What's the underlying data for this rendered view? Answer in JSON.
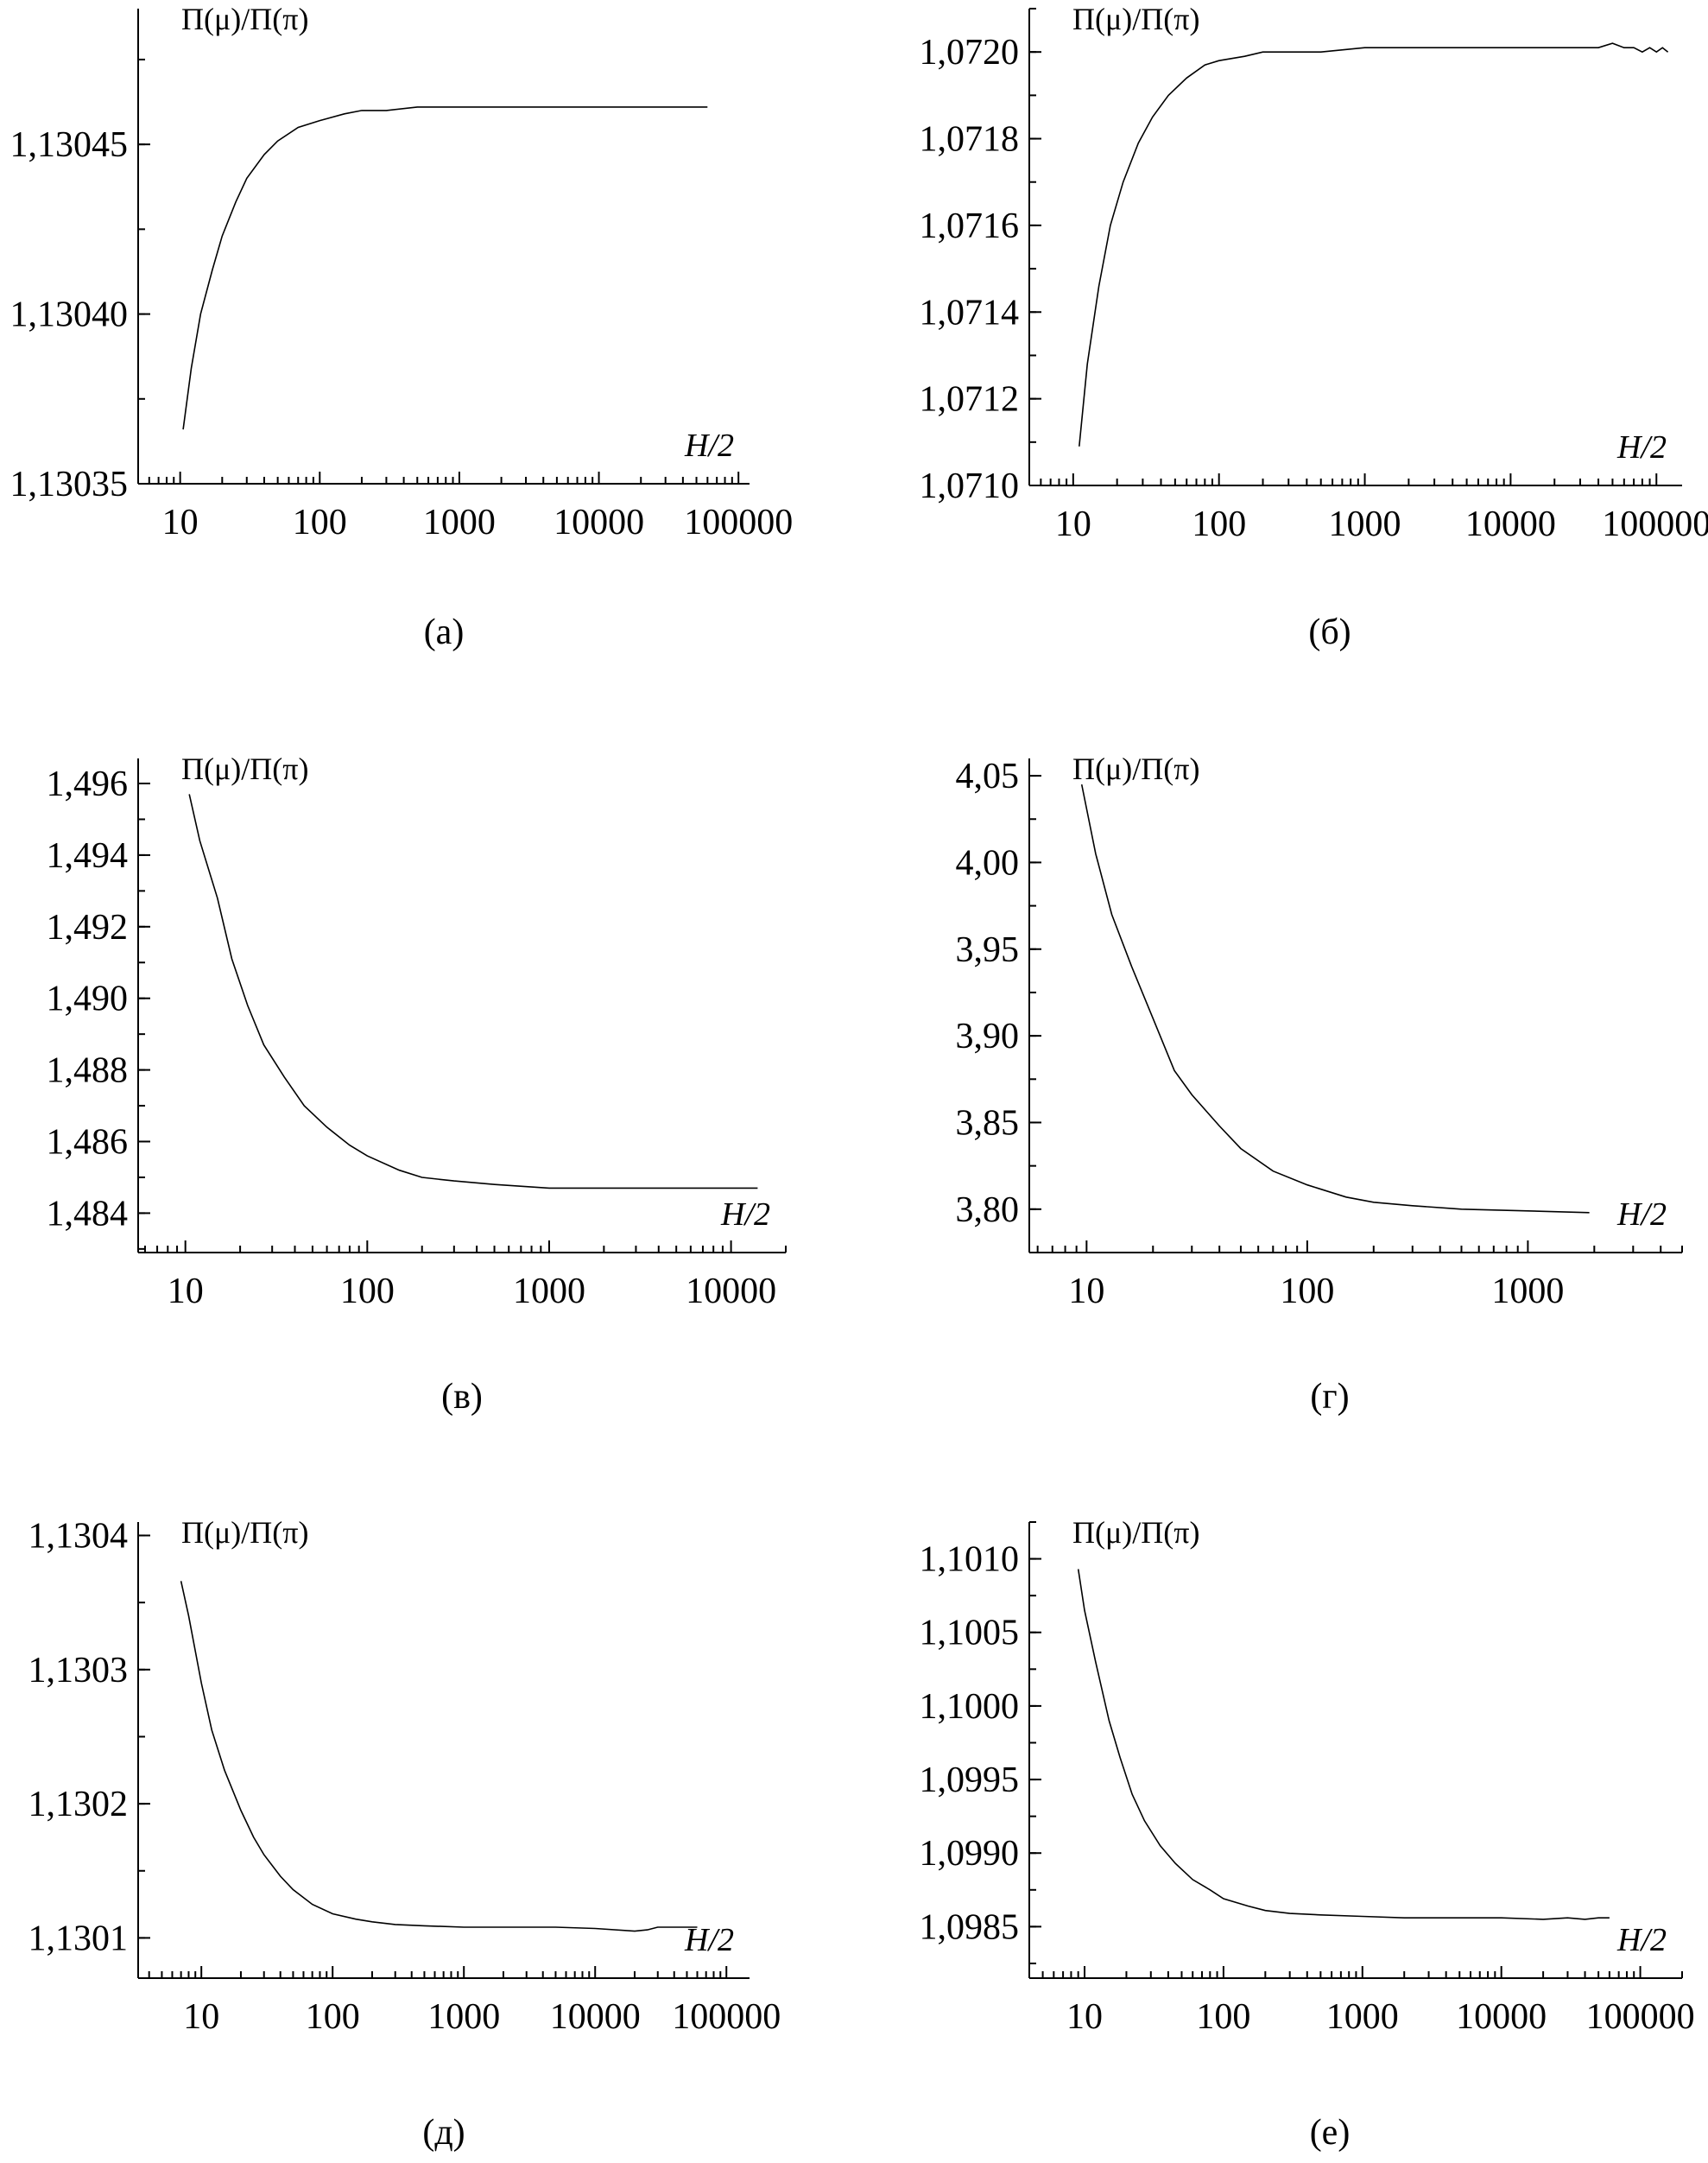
{
  "chart_data": [
    {
      "type": "line",
      "panel_label": "(а)",
      "ylabel": "П(μ)/П(π)",
      "xlabel": "H/2",
      "xscale": "log",
      "xlim": [
        5,
        120000
      ],
      "ylim": [
        1.13035,
        1.13049
      ],
      "xticks": [
        10,
        100,
        1000,
        10000,
        100000
      ],
      "xtick_labels": [
        "10",
        "100",
        "1000",
        "10000",
        "100000"
      ],
      "yticks": [
        1.13035,
        1.1304,
        1.13045
      ],
      "ytick_labels": [
        "1,13035",
        "1,13040",
        "1,13045"
      ],
      "series": [
        {
          "x": [
            10.5,
            12,
            14,
            17,
            20,
            25,
            30,
            40,
            50,
            70,
            100,
            150,
            200,
            300,
            500,
            800,
            1000,
            2000,
            5000,
            10000,
            20000,
            60000
          ],
          "y": [
            1.130366,
            1.130384,
            1.1304,
            1.130413,
            1.130423,
            1.130433,
            1.13044,
            1.130447,
            1.130451,
            1.130455,
            1.130457,
            1.130459,
            1.13046,
            1.13046,
            1.130461,
            1.130461,
            1.130461,
            1.130461,
            1.130461,
            1.130461,
            1.130461,
            1.130461
          ]
        }
      ]
    },
    {
      "type": "line",
      "panel_label": "(б)",
      "ylabel": "П(μ)/П(π)",
      "xlabel": "H/2",
      "xscale": "log",
      "xlim": [
        5,
        150000
      ],
      "ylim": [
        1.071,
        1.0721
      ],
      "xticks": [
        10,
        100,
        1000,
        10000,
        100000
      ],
      "xtick_labels": [
        "10",
        "100",
        "1000",
        "10000",
        "100000"
      ],
      "yticks": [
        1.071,
        1.0712,
        1.0714,
        1.0716,
        1.0718,
        1.072
      ],
      "ytick_labels": [
        "1,0710",
        "1,0712",
        "1,0714",
        "1,0716",
        "1,0718",
        "1,0720"
      ],
      "series": [
        {
          "x": [
            11,
            12.5,
            15,
            18,
            22,
            28,
            35,
            45,
            60,
            80,
            100,
            150,
            200,
            300,
            500,
            1000,
            2000,
            5000,
            10000,
            20000,
            30000,
            40000,
            50000,
            60000,
            70000,
            80000,
            90000,
            100000,
            110000,
            120000
          ],
          "y": [
            1.07109,
            1.07128,
            1.07146,
            1.0716,
            1.0717,
            1.07179,
            1.07185,
            1.0719,
            1.07194,
            1.07197,
            1.07198,
            1.07199,
            1.072,
            1.072,
            1.072,
            1.07201,
            1.07201,
            1.07201,
            1.07201,
            1.07201,
            1.07201,
            1.07201,
            1.07202,
            1.07201,
            1.07201,
            1.072,
            1.07201,
            1.072,
            1.07201,
            1.072
          ]
        }
      ]
    },
    {
      "type": "line",
      "panel_label": "(в)",
      "ylabel": "П(μ)/П(π)",
      "xlabel": "H/2",
      "xscale": "log",
      "xlim": [
        5.5,
        20000
      ],
      "ylim": [
        1.4829,
        1.4967
      ],
      "xticks": [
        10,
        100,
        1000,
        10000
      ],
      "xtick_labels": [
        "10",
        "100",
        "1000",
        "10000"
      ],
      "yticks": [
        1.484,
        1.486,
        1.488,
        1.49,
        1.492,
        1.494,
        1.496
      ],
      "ytick_labels": [
        "1,484",
        "1,486",
        "1,488",
        "1,490",
        "1,492",
        "1,494",
        "1,496"
      ],
      "series": [
        {
          "x": [
            10.5,
            12,
            15,
            18,
            22,
            27,
            35,
            45,
            60,
            80,
            100,
            150,
            200,
            300,
            500,
            1000,
            2000,
            5000,
            10000,
            14000
          ],
          "y": [
            1.4957,
            1.4944,
            1.4928,
            1.4911,
            1.4898,
            1.4887,
            1.4878,
            1.487,
            1.4864,
            1.4859,
            1.4856,
            1.4852,
            1.485,
            1.4849,
            1.4848,
            1.4847,
            1.4847,
            1.4847,
            1.4847,
            1.4847
          ]
        }
      ]
    },
    {
      "type": "line",
      "panel_label": "(г)",
      "ylabel": "П(μ)/П(π)",
      "xlabel": "H/2",
      "xscale": "log",
      "xlim": [
        5.5,
        5000
      ],
      "ylim": [
        3.775,
        4.06
      ],
      "xticks": [
        10,
        100,
        1000
      ],
      "xtick_labels": [
        "10",
        "100",
        "1000"
      ],
      "yticks": [
        3.8,
        3.85,
        3.9,
        3.95,
        4.0,
        4.05
      ],
      "ytick_labels": [
        "3,80",
        "3,85",
        "3,90",
        "3,95",
        "4,00",
        "4,05"
      ],
      "series": [
        {
          "x": [
            9.5,
            11,
            13,
            16,
            20,
            25,
            30,
            40,
            50,
            70,
            100,
            150,
            200,
            300,
            500,
            1000,
            1900
          ],
          "y": [
            4.045,
            4.005,
            3.97,
            3.94,
            3.91,
            3.88,
            3.866,
            3.848,
            3.835,
            3.822,
            3.814,
            3.807,
            3.804,
            3.802,
            3.8,
            3.799,
            3.798
          ]
        }
      ]
    },
    {
      "type": "line",
      "panel_label": "(д)",
      "ylabel": "П(μ)/П(π)",
      "xlabel": "H/2",
      "xscale": "log",
      "xlim": [
        3.3,
        150000
      ],
      "ylim": [
        1.13007,
        1.13041
      ],
      "xticks": [
        10,
        100,
        1000,
        10000,
        100000
      ],
      "xtick_labels": [
        "10",
        "100",
        "1000",
        "10000",
        "100000"
      ],
      "yticks": [
        1.1301,
        1.1302,
        1.1303,
        1.1304
      ],
      "ytick_labels": [
        "1,1301",
        "1,1302",
        "1,1303",
        "1,1304"
      ],
      "series": [
        {
          "x": [
            7,
            8,
            10,
            12,
            15,
            20,
            25,
            30,
            40,
            50,
            70,
            100,
            150,
            200,
            300,
            500,
            1000,
            2000,
            5000,
            10000,
            20000,
            25000,
            30000,
            40000,
            60000
          ],
          "y": [
            1.130366,
            1.13034,
            1.13029,
            1.130255,
            1.130225,
            1.130195,
            1.130175,
            1.130162,
            1.130146,
            1.130136,
            1.130125,
            1.130118,
            1.130114,
            1.130112,
            1.13011,
            1.130109,
            1.130108,
            1.130108,
            1.130108,
            1.130107,
            1.130105,
            1.130106,
            1.130108,
            1.130108,
            1.130108
          ]
        }
      ]
    },
    {
      "type": "line",
      "panel_label": "(е)",
      "ylabel": "П(μ)/П(π)",
      "xlabel": "H/2",
      "xscale": "log",
      "xlim": [
        4,
        200000
      ],
      "ylim": [
        1.09815,
        1.10125
      ],
      "xticks": [
        10,
        100,
        1000,
        10000,
        100000
      ],
      "xtick_labels": [
        "10",
        "100",
        "1000",
        "10000",
        "100000"
      ],
      "yticks": [
        1.0985,
        1.099,
        1.0995,
        1.1,
        1.1005,
        1.101
      ],
      "ytick_labels": [
        "1,0985",
        "1,0990",
        "1,0995",
        "1,1000",
        "1,1005",
        "1,1010"
      ],
      "series": [
        {
          "x": [
            9,
            10,
            12,
            15,
            18,
            22,
            27,
            35,
            45,
            60,
            80,
            100,
            150,
            200,
            300,
            500,
            1000,
            2000,
            5000,
            10000,
            20000,
            30000,
            40000,
            50000,
            60000
          ],
          "y": [
            1.10093,
            1.10065,
            1.1003,
            1.0999,
            1.09965,
            1.0994,
            1.09922,
            1.09905,
            1.09893,
            1.09882,
            1.09875,
            1.09869,
            1.09864,
            1.09861,
            1.09859,
            1.09858,
            1.09857,
            1.09856,
            1.09856,
            1.09856,
            1.09855,
            1.09856,
            1.09855,
            1.09856,
            1.09856
          ]
        }
      ]
    }
  ]
}
